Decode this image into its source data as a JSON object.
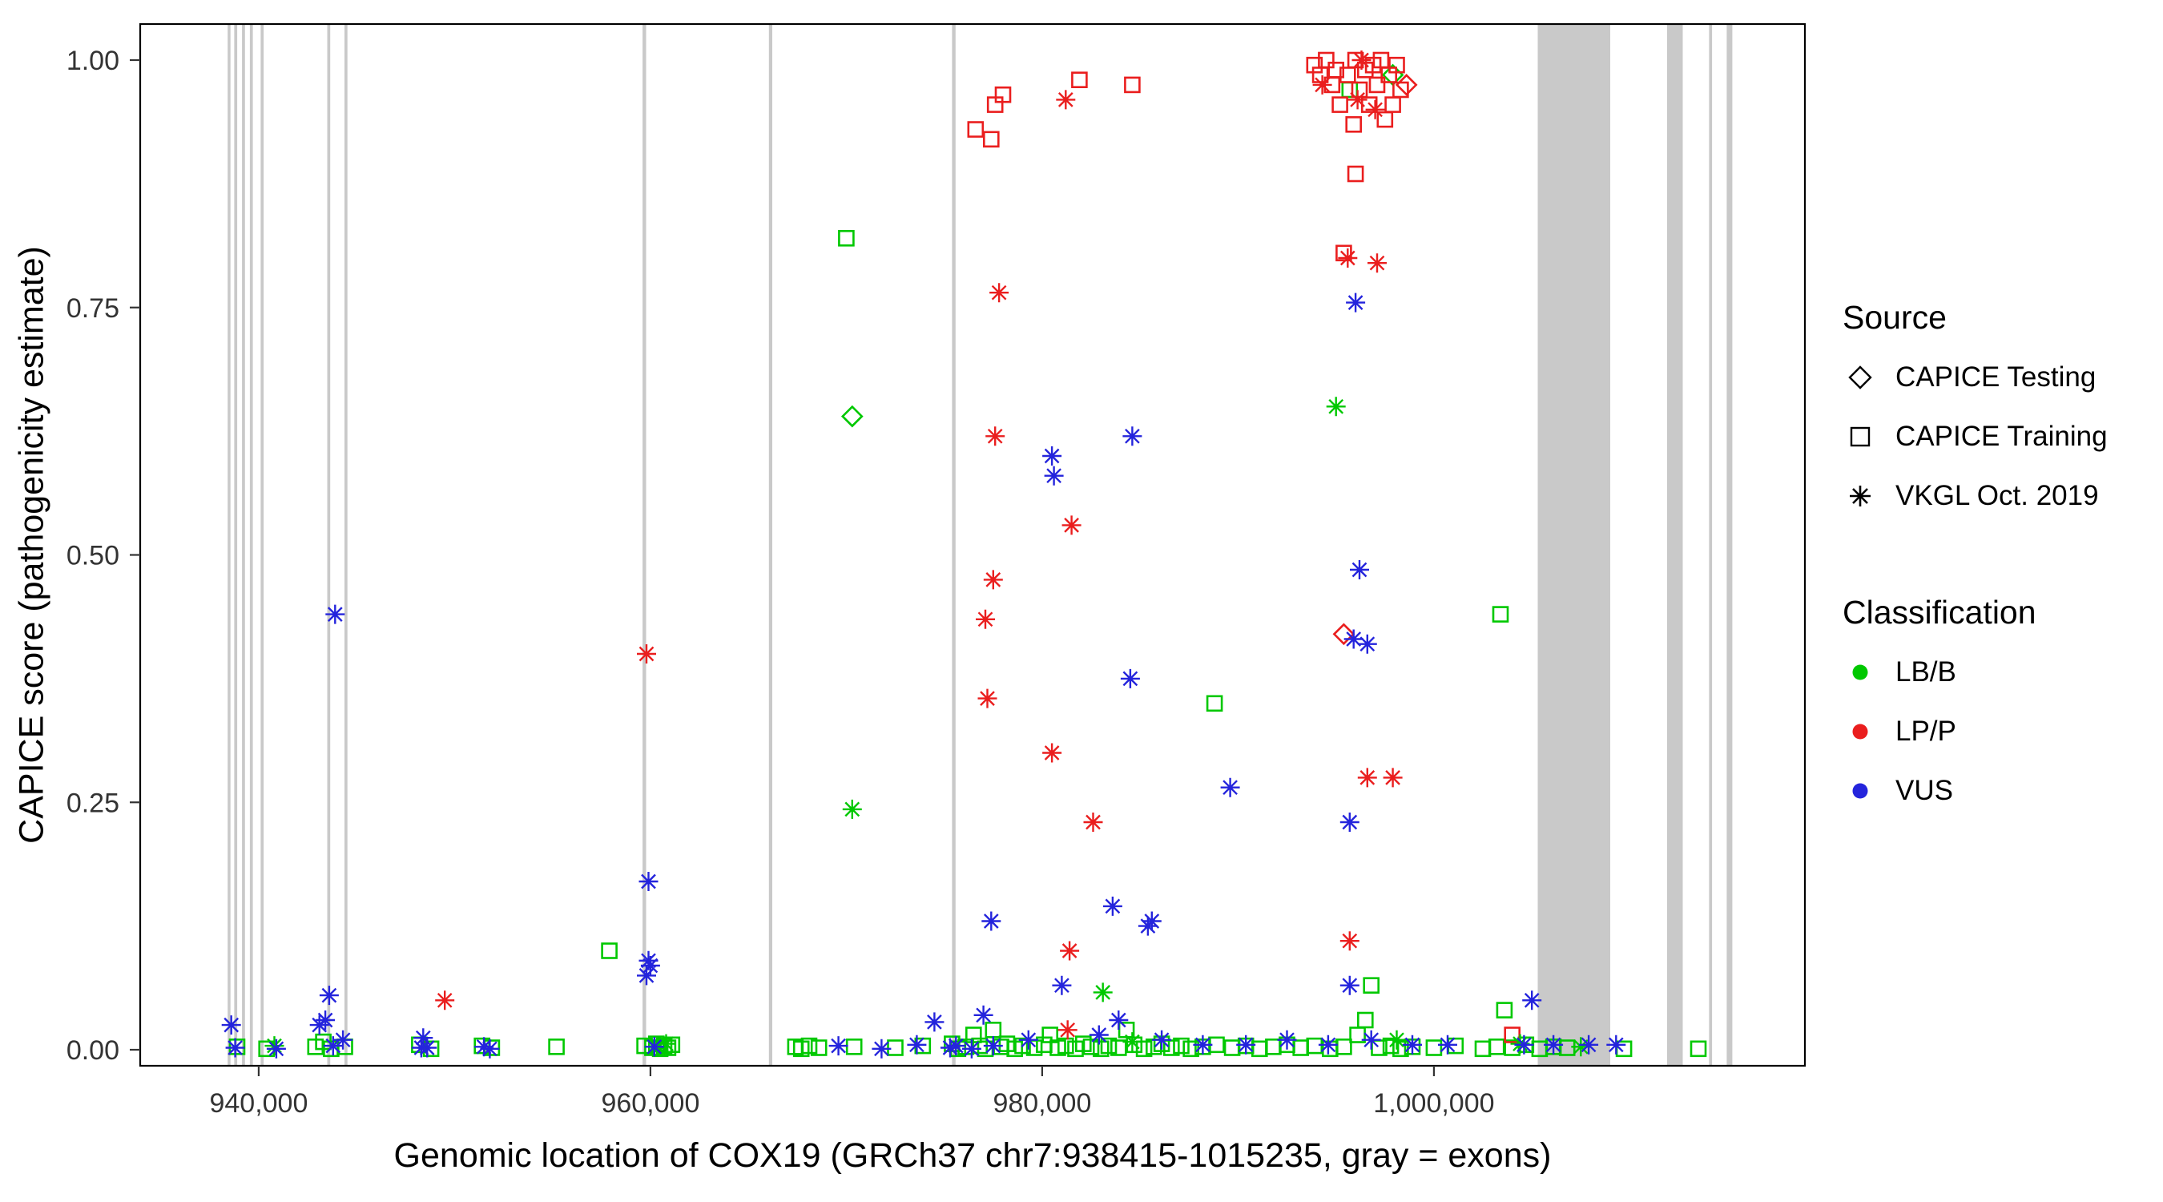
{
  "axes": {
    "x": {
      "label": "Genomic location of COX19 (GRCh37 chr7:938415-1015235, gray = exons)",
      "ticks": [
        {
          "value": 940000,
          "label": "940,000"
        },
        {
          "value": 960000,
          "label": "960,000"
        },
        {
          "value": 980000,
          "label": "980,000"
        },
        {
          "value": 1000000,
          "label": "1,000,000"
        }
      ]
    },
    "y": {
      "label": "CAPICE score (pathogenicity estimate)",
      "ticks": [
        {
          "value": 0,
          "label": "0.00"
        },
        {
          "value": 0.25,
          "label": "0.25"
        },
        {
          "value": 0.5,
          "label": "0.50"
        },
        {
          "value": 0.75,
          "label": "0.75"
        },
        {
          "value": 1,
          "label": "1.00"
        }
      ]
    }
  },
  "legend": {
    "source": {
      "title": "Source",
      "items": [
        {
          "label": "CAPICE Testing",
          "shape": "diamond"
        },
        {
          "label": "CAPICE Training",
          "shape": "square"
        },
        {
          "label": "VKGL Oct. 2019",
          "shape": "asterisk"
        }
      ]
    },
    "classification": {
      "title": "Classification",
      "items": [
        {
          "label": "LB/B",
          "color": "#00C800"
        },
        {
          "label": "LP/P",
          "color": "#EA1E1E"
        },
        {
          "label": "VUS",
          "color": "#2424DC"
        }
      ]
    }
  },
  "colors": {
    "exon": "#C9C9C9",
    "axis": "#000000",
    "tick": "#333333",
    "LB/B": "#00C800",
    "LP/P": "#EA1E1E",
    "VUS": "#2424DC"
  },
  "chart_data": {
    "type": "scatter",
    "title": "",
    "xlabel": "Genomic location of COX19 (GRCh37 chr7:938415-1015235, gray = exons)",
    "ylabel": "CAPICE score (pathogenicity estimate)",
    "xlim": [
      933950,
      1018940
    ],
    "ylim": [
      -0.02,
      1.02
    ],
    "legend_position": "right",
    "gene_region": "chr7:938415-1015235",
    "exons": [
      [
        938415,
        938560
      ],
      [
        938750,
        938900
      ],
      [
        939150,
        939300
      ],
      [
        939550,
        939700
      ],
      [
        940100,
        940250
      ],
      [
        943500,
        943650
      ],
      [
        944380,
        944530
      ],
      [
        959600,
        959780
      ],
      [
        966050,
        966220
      ],
      [
        975400,
        975580
      ],
      [
        1005300,
        1009000
      ],
      [
        1011900,
        1012700
      ],
      [
        1014050,
        1014200
      ],
      [
        1014950,
        1015235
      ]
    ],
    "series": [
      {
        "source": "CAPICE Testing",
        "classification": "LB/B",
        "shape": "diamond",
        "color": "#00C800",
        "points": [
          [
            970300,
            0.64
          ],
          [
            997900,
            0.985
          ]
        ]
      },
      {
        "source": "CAPICE Testing",
        "classification": "LP/P",
        "shape": "diamond",
        "color": "#EA1E1E",
        "points": [
          [
            995400,
            0.42
          ],
          [
            998600,
            0.975
          ]
        ]
      },
      {
        "source": "CAPICE Training",
        "classification": "LB/B",
        "shape": "square",
        "color": "#00C800",
        "points": [
          [
            938900,
            0.003
          ],
          [
            940400,
            0.001
          ],
          [
            942900,
            0.003
          ],
          [
            943300,
            0.008
          ],
          [
            943700,
            0.001
          ],
          [
            944400,
            0.003
          ],
          [
            948200,
            0.005
          ],
          [
            948800,
            0.001
          ],
          [
            951400,
            0.004
          ],
          [
            951900,
            0.002
          ],
          [
            955200,
            0.003
          ],
          [
            957900,
            0.1
          ],
          [
            959700,
            0.004
          ],
          [
            960100,
            0.002
          ],
          [
            960300,
            0.006
          ],
          [
            960500,
            0.001
          ],
          [
            960700,
            0.004
          ],
          [
            960900,
            0.002
          ],
          [
            961100,
            0.005
          ],
          [
            967400,
            0.003
          ],
          [
            967700,
            0.001
          ],
          [
            968100,
            0.004
          ],
          [
            968600,
            0.002
          ],
          [
            970000,
            0.82
          ],
          [
            970400,
            0.003
          ],
          [
            972500,
            0.002
          ],
          [
            973900,
            0.004
          ],
          [
            975400,
            0.006
          ],
          [
            975700,
            0.001
          ],
          [
            976100,
            0.003
          ],
          [
            976500,
            0.015
          ],
          [
            976800,
            0.004
          ],
          [
            977100,
            0.001
          ],
          [
            977500,
            0.02
          ],
          [
            977900,
            0.003
          ],
          [
            978200,
            0.006
          ],
          [
            978600,
            0.001
          ],
          [
            979000,
            0.004
          ],
          [
            979600,
            0.002
          ],
          [
            980100,
            0.005
          ],
          [
            980400,
            0.015
          ],
          [
            980800,
            0.002
          ],
          [
            981200,
            0.004
          ],
          [
            981700,
            0.001
          ],
          [
            982100,
            0.006
          ],
          [
            982500,
            0.003
          ],
          [
            983000,
            0.001
          ],
          [
            983400,
            0.004
          ],
          [
            983900,
            0.002
          ],
          [
            984300,
            0.02
          ],
          [
            984700,
            0.005
          ],
          [
            985200,
            0.001
          ],
          [
            985700,
            0.003
          ],
          [
            986100,
            0.006
          ],
          [
            986600,
            0.002
          ],
          [
            987100,
            0.004
          ],
          [
            987600,
            0.001
          ],
          [
            988200,
            0.003
          ],
          [
            988800,
            0.35
          ],
          [
            988900,
            0.005
          ],
          [
            989700,
            0.002
          ],
          [
            990400,
            0.004
          ],
          [
            991100,
            0.001
          ],
          [
            991800,
            0.003
          ],
          [
            992500,
            0.005
          ],
          [
            993200,
            0.002
          ],
          [
            993900,
            0.004
          ],
          [
            994700,
            0.001
          ],
          [
            995400,
            0.003
          ],
          [
            995700,
            0.97
          ],
          [
            996100,
            0.015
          ],
          [
            996500,
            0.03
          ],
          [
            996800,
            0.065
          ],
          [
            997200,
            0.002
          ],
          [
            997800,
            0.004
          ],
          [
            998300,
            0.001
          ],
          [
            998900,
            0.003
          ],
          [
            1000000,
            0.002
          ],
          [
            1001100,
            0.004
          ],
          [
            1002500,
            0.001
          ],
          [
            1003200,
            0.003
          ],
          [
            1003400,
            0.44
          ],
          [
            1003600,
            0.04
          ],
          [
            1004000,
            0.002
          ],
          [
            1004700,
            0.005
          ],
          [
            1005400,
            0.001
          ],
          [
            1006100,
            0.003
          ],
          [
            1006800,
            0.002
          ],
          [
            1009700,
            0.001
          ],
          [
            1013500,
            0.001
          ]
        ]
      },
      {
        "source": "CAPICE Training",
        "classification": "LP/P",
        "shape": "square",
        "color": "#EA1E1E",
        "points": [
          [
            976600,
            0.93
          ],
          [
            977400,
            0.92
          ],
          [
            977600,
            0.955
          ],
          [
            978000,
            0.965
          ],
          [
            981900,
            0.98
          ],
          [
            984600,
            0.975
          ],
          [
            993900,
            0.995
          ],
          [
            994200,
            0.985
          ],
          [
            994500,
            1.0
          ],
          [
            994800,
            0.975
          ],
          [
            995000,
            0.99
          ],
          [
            995200,
            0.955
          ],
          [
            995400,
            0.805
          ],
          [
            995600,
            0.985
          ],
          [
            995900,
            0.935
          ],
          [
            996000,
            1.0
          ],
          [
            996200,
            0.97
          ],
          [
            996500,
            0.99
          ],
          [
            996700,
            0.955
          ],
          [
            996900,
            0.995
          ],
          [
            997100,
            0.975
          ],
          [
            997300,
            1.0
          ],
          [
            997500,
            0.94
          ],
          [
            997700,
            0.985
          ],
          [
            997900,
            0.955
          ],
          [
            998100,
            0.995
          ],
          [
            998300,
            0.97
          ],
          [
            996000,
            0.885
          ],
          [
            1004000,
            0.015
          ]
        ]
      },
      {
        "source": "VKGL Oct. 2019",
        "classification": "LB/B",
        "shape": "asterisk",
        "color": "#00C800",
        "points": [
          [
            940800,
            0.004
          ],
          [
            960400,
            0.003
          ],
          [
            960800,
            0.006
          ],
          [
            970300,
            0.243
          ],
          [
            983100,
            0.058
          ],
          [
            984600,
            0.008
          ],
          [
            995000,
            0.65
          ],
          [
            998100,
            0.01
          ],
          [
            1004400,
            0.006
          ],
          [
            1007500,
            0.003
          ]
        ]
      },
      {
        "source": "VKGL Oct. 2019",
        "classification": "LP/P",
        "shape": "asterisk",
        "color": "#EA1E1E",
        "points": [
          [
            949500,
            0.05
          ],
          [
            959800,
            0.4
          ],
          [
            977100,
            0.435
          ],
          [
            977200,
            0.355
          ],
          [
            977500,
            0.475
          ],
          [
            977600,
            0.62
          ],
          [
            977800,
            0.765
          ],
          [
            980500,
            0.3
          ],
          [
            981200,
            0.96
          ],
          [
            981300,
            0.02
          ],
          [
            981400,
            0.1
          ],
          [
            981500,
            0.53
          ],
          [
            982600,
            0.23
          ],
          [
            994300,
            0.975
          ],
          [
            995600,
            0.8
          ],
          [
            995700,
            0.11
          ],
          [
            996100,
            0.96
          ],
          [
            996300,
            1.0
          ],
          [
            996600,
            0.275
          ],
          [
            997000,
            0.95
          ],
          [
            997100,
            0.795
          ],
          [
            997900,
            0.275
          ]
        ]
      },
      {
        "source": "VKGL Oct. 2019",
        "classification": "VUS",
        "shape": "asterisk",
        "color": "#2424DC",
        "points": [
          [
            938600,
            0.025
          ],
          [
            938800,
            0.002
          ],
          [
            940900,
            0.001
          ],
          [
            943100,
            0.025
          ],
          [
            943400,
            0.03
          ],
          [
            943600,
            0.055
          ],
          [
            943800,
            0.004
          ],
          [
            943900,
            0.44
          ],
          [
            944300,
            0.01
          ],
          [
            948300,
            0.002
          ],
          [
            948400,
            0.012
          ],
          [
            948600,
            0.002
          ],
          [
            951500,
            0.003
          ],
          [
            951800,
            0.001
          ],
          [
            959800,
            0.075
          ],
          [
            959900,
            0.09
          ],
          [
            959900,
            0.17
          ],
          [
            960000,
            0.085
          ],
          [
            960200,
            0.003
          ],
          [
            969600,
            0.004
          ],
          [
            971800,
            0.001
          ],
          [
            973600,
            0.005
          ],
          [
            974500,
            0.028
          ],
          [
            975300,
            0.002
          ],
          [
            975600,
            0.004
          ],
          [
            976400,
            0.001
          ],
          [
            977000,
            0.035
          ],
          [
            977400,
            0.13
          ],
          [
            977500,
            0.004
          ],
          [
            979300,
            0.01
          ],
          [
            980500,
            0.6
          ],
          [
            980600,
            0.58
          ],
          [
            981000,
            0.065
          ],
          [
            982900,
            0.015
          ],
          [
            983600,
            0.145
          ],
          [
            983900,
            0.03
          ],
          [
            984500,
            0.375
          ],
          [
            984600,
            0.62
          ],
          [
            985400,
            0.125
          ],
          [
            985600,
            0.13
          ],
          [
            986100,
            0.01
          ],
          [
            988200,
            0.005
          ],
          [
            989600,
            0.265
          ],
          [
            990400,
            0.005
          ],
          [
            992500,
            0.01
          ],
          [
            994600,
            0.005
          ],
          [
            995700,
            0.065
          ],
          [
            995700,
            0.23
          ],
          [
            995900,
            0.415
          ],
          [
            996000,
            0.755
          ],
          [
            996200,
            0.485
          ],
          [
            996600,
            0.41
          ],
          [
            996800,
            0.01
          ],
          [
            998900,
            0.005
          ],
          [
            1000700,
            0.005
          ],
          [
            1004600,
            0.005
          ],
          [
            1005000,
            0.05
          ],
          [
            1006100,
            0.005
          ],
          [
            1007900,
            0.005
          ],
          [
            1009300,
            0.005
          ]
        ]
      }
    ]
  }
}
